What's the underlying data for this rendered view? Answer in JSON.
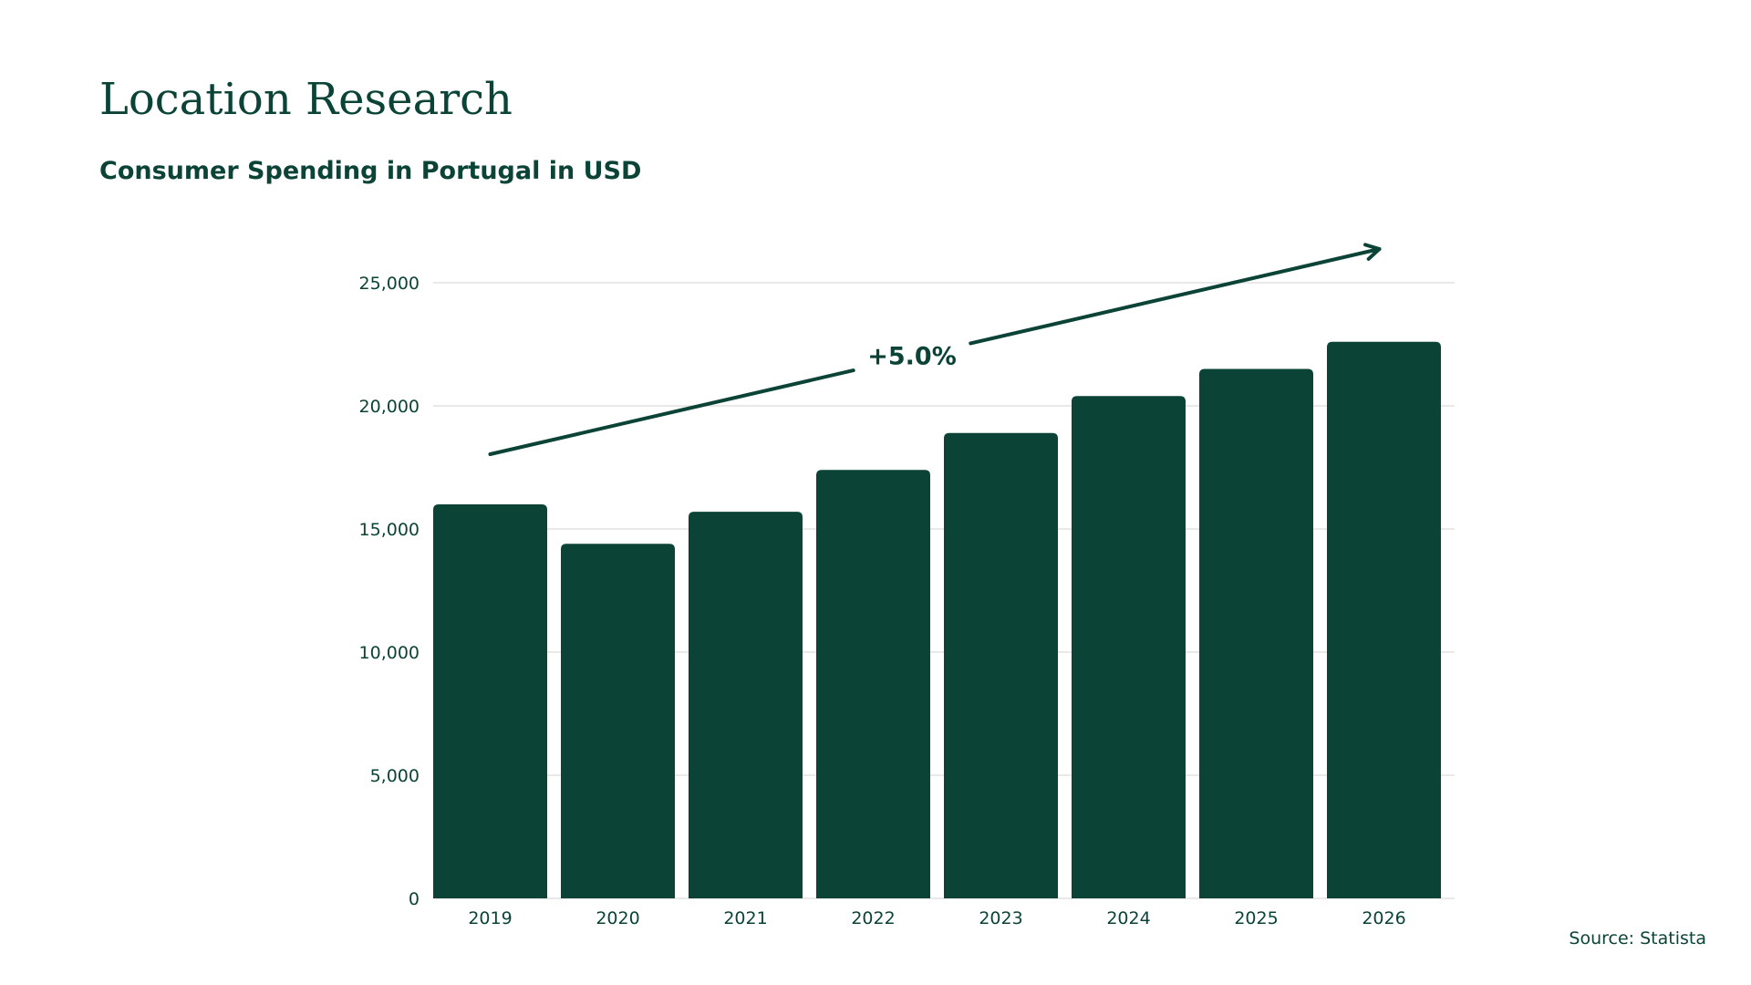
{
  "page": {
    "title": "Location Research",
    "source": "Source: Statista"
  },
  "colors": {
    "bar": "#0b4436",
    "text": "#0b4436",
    "grid": "#d9dcdb"
  },
  "chart_data": {
    "type": "bar",
    "title": "Consumer Spending in Portugal in USD",
    "xlabel": "",
    "ylabel": "",
    "categories": [
      "2019",
      "2020",
      "2021",
      "2022",
      "2023",
      "2024",
      "2025",
      "2026"
    ],
    "values": [
      16000,
      14400,
      15700,
      17400,
      18900,
      20400,
      21500,
      22600
    ],
    "ylim": [
      0,
      25000
    ],
    "yticks": [
      0,
      5000,
      10000,
      15000,
      20000,
      25000
    ],
    "ytick_labels": [
      "0",
      "5,000",
      "10,000",
      "15,000",
      "20,000",
      "25,000"
    ],
    "grid": true,
    "legend": "none",
    "annotations": [
      {
        "text": "+5.0%",
        "type": "trend-arrow",
        "from_category": "2019",
        "to_category": "2026"
      }
    ]
  }
}
